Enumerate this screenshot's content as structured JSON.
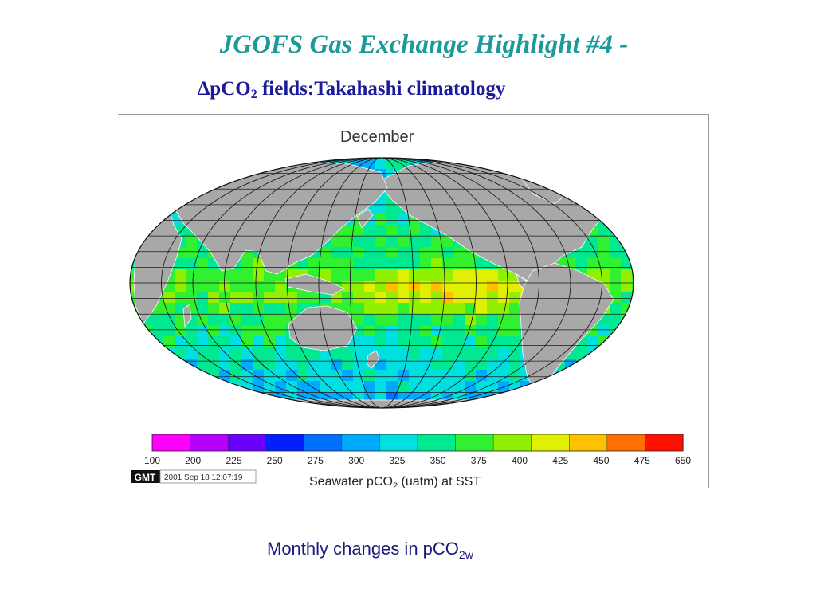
{
  "slide": {
    "title": "JGOFS  Gas Exchange Highlight  #4 -",
    "subtitle_symbol": "∆pCO",
    "subtitle_subscript": "2",
    "subtitle_rest": " fields:Takahashi climatology",
    "caption_main": "Monthly changes in pCO",
    "caption_subscript": "2w"
  },
  "figure": {
    "month": "December",
    "colorbar_ticks": [
      "100",
      "200",
      "225",
      "250",
      "275",
      "300",
      "325",
      "350",
      "375",
      "400",
      "425",
      "450",
      "475",
      "650"
    ],
    "colorbar_colors": [
      "#ff00ff",
      "#b800ff",
      "#6a00ff",
      "#0020ff",
      "#0070ff",
      "#00aaff",
      "#00e0e0",
      "#00e890",
      "#30f030",
      "#90f000",
      "#e0f000",
      "#ffc000",
      "#ff7000",
      "#ff1000"
    ],
    "colorbar_label_pre": "Seawater pCO",
    "colorbar_label_sub": "2",
    "colorbar_label_post": " (uatm) at SST",
    "gmt_badge": "GMT",
    "timestamp": "2001 Sep 18 12:07:19",
    "land_color": "#a8a8a8",
    "grid_color": "#1a1a1a"
  }
}
